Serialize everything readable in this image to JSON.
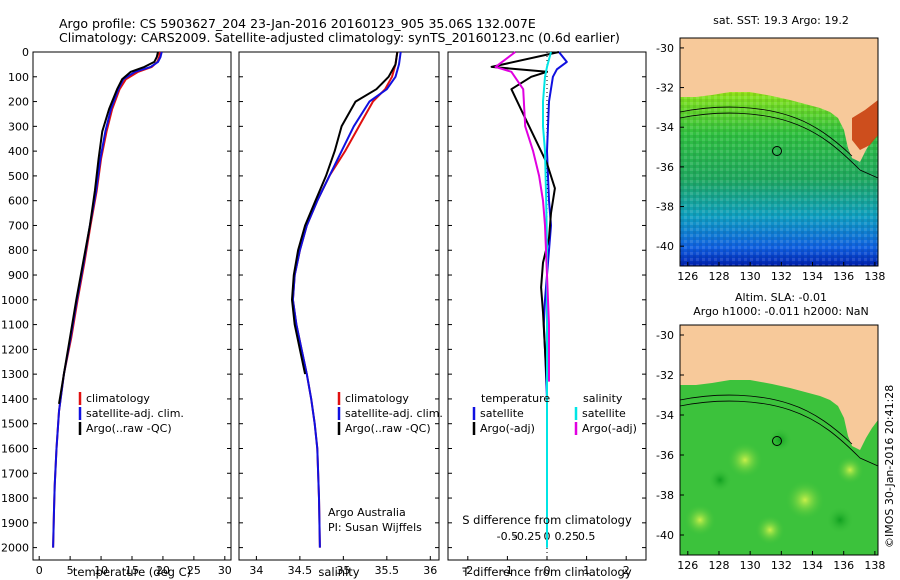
{
  "header": {
    "title_line1": "Argo profile: CS 5903627_204 23-Jan-2016 20160123_905 35.06S 132.007E",
    "title_line2": "Climatology: CARS2009. Satellite-adjusted climatology: synTS_20160123.nc (0.6d earlier)"
  },
  "colors": {
    "climatology": "#e01010",
    "satellite": "#1010e0",
    "argo": "#000000",
    "satellite_salinity": "#00e5e5",
    "argo_salinity": "#e000e0",
    "land": "#f7c99a"
  },
  "depth_axis": {
    "ticks": [
      "0",
      "100",
      "200",
      "300",
      "400",
      "500",
      "600",
      "700",
      "800",
      "900",
      "1000",
      "1100",
      "1200",
      "1300",
      "1400",
      "1500",
      "1600",
      "1700",
      "1800",
      "1900",
      "2000"
    ]
  },
  "legend_profiles": [
    "climatology",
    "satellite-adj. clim.",
    "Argo(..raw -QC)"
  ],
  "legend_diff": {
    "temperature_head": "temperature",
    "salinity_head": "salinity",
    "temperature_items": [
      "satellite",
      "Argo(-adj)"
    ],
    "salinity_items": [
      "satellite",
      "Argo(-adj)"
    ]
  },
  "footer_note": {
    "line1": "Argo Australia",
    "line2": "PI: Susan Wijffels"
  },
  "maps": {
    "sst_title": "sat. SST: 19.3 Argo: 19.2",
    "sla_title_line1": "Altim. SLA: -0.01",
    "sla_title_line2": "Argo h1000: -0.011 h2000: NaN",
    "lat_ticks": [
      "-30",
      "-32",
      "-34",
      "-36",
      "-38",
      "-40"
    ],
    "lon_ticks": [
      "126",
      "128",
      "130",
      "132",
      "134",
      "136",
      "138"
    ]
  },
  "credit": "©IMOS 30-Jan-2016 20:41:28",
  "chart_data": [
    {
      "type": "line",
      "title": "",
      "xlabel": "temperature (deg C)",
      "ylabel": "",
      "xlim": [
        -1,
        31
      ],
      "ylim": [
        2050,
        0
      ],
      "x_ticks": [
        "0",
        "5",
        "10",
        "15",
        "20",
        "25",
        "30"
      ],
      "series": [
        {
          "name": "climatology",
          "color": "#e01010",
          "x": [
            19.5,
            19.4,
            19.1,
            18.2,
            16.0,
            14.0,
            13.0,
            11.8,
            10.9,
            10.0,
            9.3,
            8.3,
            7.3,
            6.2,
            5.2,
            4.0,
            3.2,
            2.8,
            2.5,
            2.4,
            2.3,
            2.25
          ],
          "y": [
            0,
            20,
            40,
            60,
            80,
            110,
            150,
            230,
            320,
            430,
            560,
            700,
            850,
            1000,
            1150,
            1300,
            1450,
            1600,
            1750,
            1850,
            1950,
            2000
          ]
        },
        {
          "name": "satellite-adj. clim.",
          "color": "#1010e0",
          "x": [
            19.8,
            19.6,
            19.2,
            18.0,
            15.5,
            13.6,
            12.8,
            11.6,
            10.7,
            9.9,
            9.2,
            8.2,
            7.2,
            6.1,
            5.1,
            4.0,
            3.2,
            2.8,
            2.5,
            2.4,
            2.3,
            2.25
          ],
          "y": [
            0,
            20,
            40,
            60,
            80,
            110,
            150,
            230,
            320,
            430,
            560,
            700,
            850,
            1000,
            1150,
            1300,
            1450,
            1600,
            1750,
            1850,
            1950,
            2000
          ]
        },
        {
          "name": "Argo(..raw -QC)",
          "color": "#000000",
          "x": [
            19.2,
            19.0,
            18.6,
            17.0,
            14.8,
            13.4,
            12.6,
            11.3,
            10.2,
            9.6,
            9.0,
            8.2,
            7.1,
            6.0,
            5.0,
            4.0,
            3.2
          ],
          "y": [
            0,
            20,
            40,
            60,
            80,
            110,
            150,
            230,
            320,
            430,
            560,
            700,
            850,
            1000,
            1150,
            1300,
            1420
          ]
        }
      ]
    },
    {
      "type": "line",
      "title": "",
      "xlabel": "salinity",
      "ylabel": "",
      "xlim": [
        33.8,
        36.1
      ],
      "ylim": [
        2050,
        0
      ],
      "x_ticks": [
        "34",
        "34.5",
        "35",
        "35.5",
        "36"
      ],
      "series": [
        {
          "name": "climatology",
          "color": "#e01010",
          "x": [
            35.62,
            35.6,
            35.56,
            35.48,
            35.34,
            35.18,
            35.02,
            34.84,
            34.7,
            34.58,
            34.5,
            34.44,
            34.42,
            34.46,
            34.52,
            34.58,
            34.63,
            34.67,
            34.7,
            34.72,
            34.73
          ],
          "y": [
            0,
            50,
            100,
            150,
            200,
            300,
            400,
            500,
            600,
            700,
            800,
            900,
            1000,
            1100,
            1200,
            1300,
            1400,
            1500,
            1600,
            1800,
            2000
          ]
        },
        {
          "name": "satellite-adj. clim.",
          "color": "#1010e0",
          "x": [
            35.66,
            35.64,
            35.6,
            35.5,
            35.3,
            35.12,
            34.98,
            34.84,
            34.7,
            34.58,
            34.5,
            34.44,
            34.42,
            34.46,
            34.52,
            34.58,
            34.63,
            34.67,
            34.7,
            34.72,
            34.73
          ],
          "y": [
            0,
            50,
            100,
            150,
            200,
            300,
            400,
            500,
            600,
            700,
            800,
            900,
            1000,
            1100,
            1200,
            1300,
            1400,
            1500,
            1600,
            1800,
            2000
          ]
        },
        {
          "name": "Argo(..raw -QC)",
          "color": "#000000",
          "x": [
            35.62,
            35.6,
            35.52,
            35.38,
            35.14,
            34.98,
            34.9,
            34.8,
            34.68,
            34.56,
            34.48,
            34.43,
            34.41,
            34.44,
            34.5,
            34.56
          ],
          "y": [
            0,
            50,
            100,
            150,
            200,
            300,
            400,
            500,
            600,
            700,
            800,
            900,
            1000,
            1100,
            1200,
            1300
          ]
        }
      ]
    },
    {
      "type": "line",
      "title": "",
      "xlabel": "T difference from climatology",
      "ylabel": "",
      "x2label": "S difference from climatology",
      "xlim": [
        -2.5,
        2.5
      ],
      "ylim": [
        2050,
        0
      ],
      "x_ticks": [
        "-2",
        "-1",
        "0",
        "1",
        "2"
      ],
      "x2_ticks": [
        "-0.5",
        "-0.25",
        "0",
        "0.25",
        "0.5"
      ],
      "series": [
        {
          "name": "satellite",
          "color": "#1010e0",
          "x": [
            0.3,
            0.5,
            0.25,
            0.15,
            0.05,
            0.0,
            0.05,
            0.1,
            0.05,
            0.0,
            -0.05,
            -0.08,
            -0.05,
            0.0,
            0.0,
            0.0,
            0.0
          ],
          "y": [
            0,
            40,
            70,
            100,
            200,
            400,
            600,
            700,
            800,
            900,
            1000,
            1100,
            1200,
            1400,
            1600,
            1800,
            2000
          ]
        },
        {
          "name": "Argo(-adj)",
          "color": "#000000",
          "x": [
            0.3,
            -1.4,
            0.0,
            -0.4,
            -0.9,
            -0.6,
            -0.3,
            0.0,
            0.2,
            0.1,
            0.05,
            -0.1,
            -0.15,
            -0.1,
            -0.05,
            0.0
          ],
          "y": [
            0,
            60,
            80,
            100,
            150,
            250,
            350,
            450,
            550,
            650,
            750,
            850,
            950,
            1050,
            1200,
            1350
          ]
        },
        {
          "name": "satellite salinity",
          "color": "#00e5e5",
          "x": [
            0.1,
            0.0,
            -0.05,
            -0.1,
            -0.1,
            -0.05,
            -0.02,
            0.0,
            0.0,
            0.0,
            0.0,
            0.0
          ],
          "y": [
            0,
            60,
            100,
            200,
            300,
            400,
            600,
            800,
            1000,
            1300,
            1600,
            2000
          ]
        },
        {
          "name": "Argo salinity",
          "color": "#e000e0",
          "x": [
            -0.8,
            -1.3,
            -0.9,
            -0.6,
            -0.55,
            -0.35,
            -0.2,
            -0.1,
            -0.05,
            0.0,
            0.05,
            0.05,
            0.05
          ],
          "y": [
            0,
            60,
            80,
            150,
            300,
            400,
            500,
            600,
            700,
            900,
            1100,
            1200,
            1330
          ]
        }
      ]
    }
  ]
}
